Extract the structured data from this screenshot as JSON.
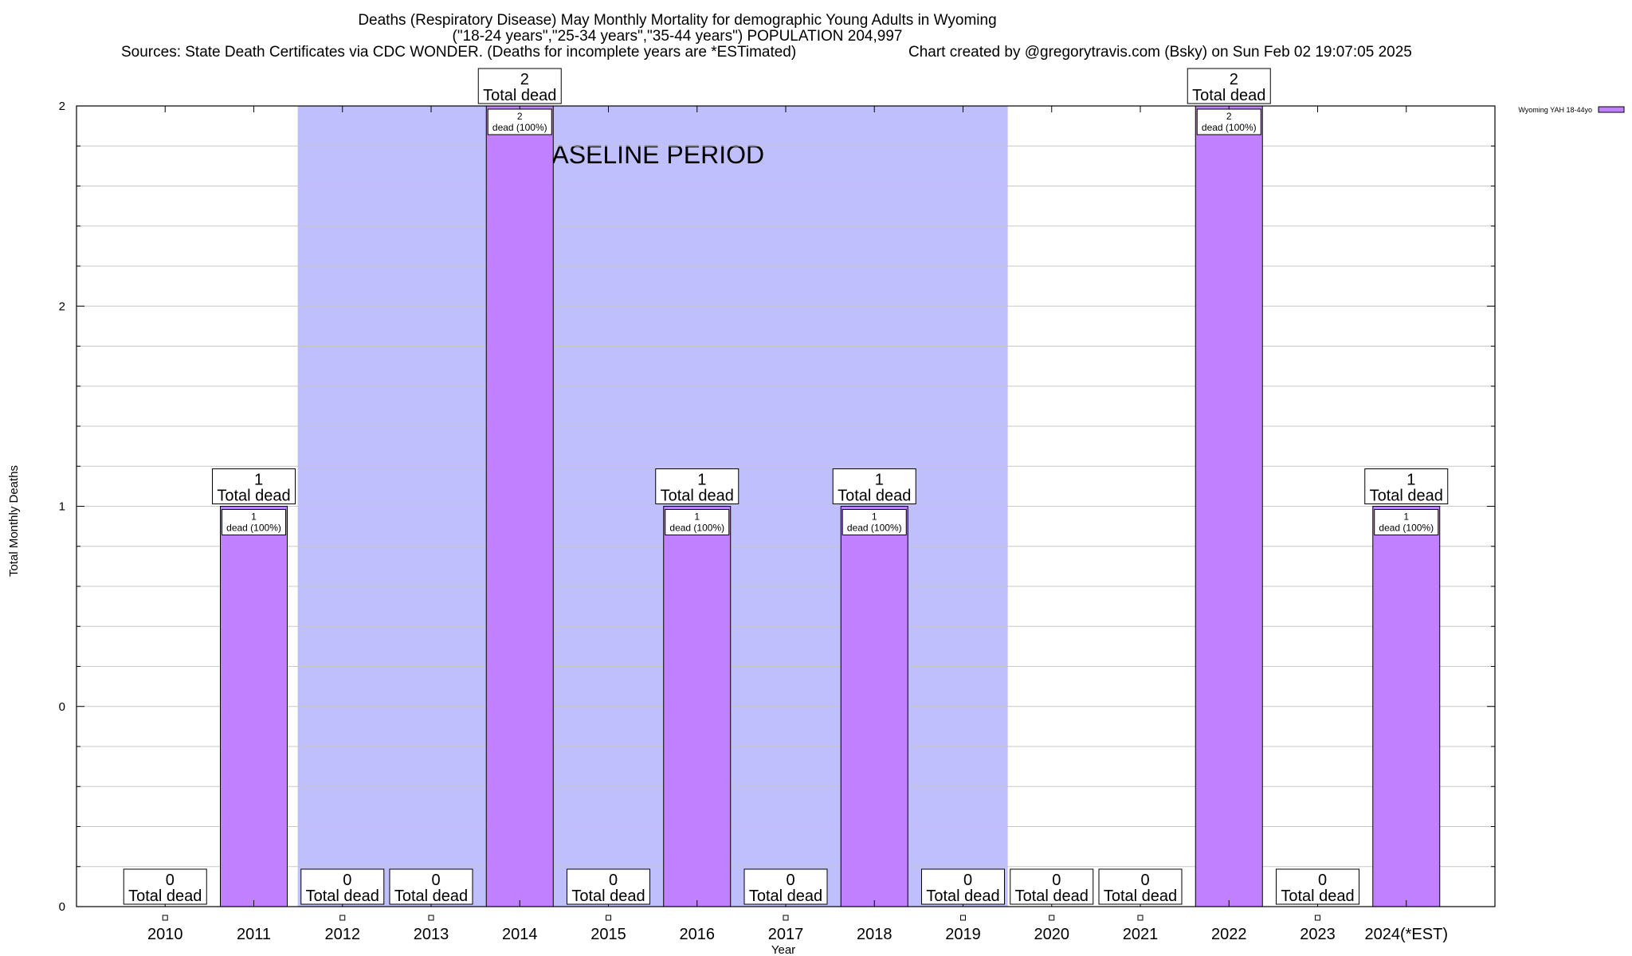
{
  "chart_data": {
    "type": "bar",
    "title_lines": [
      "Deaths (Respiratory Disease) May Monthly Mortality for demographic Young Adults in Wyoming",
      "(\"18-24 years\",\"25-34 years\",\"35-44 years\") POPULATION 204,997",
      "Sources: State Death Certificates via CDC WONDER. (Deaths for incomplete years are *ESTimated)",
      "Chart created by @gregorytravis.com (Bsky) on Sun Feb 02 19:07:05 2025"
    ],
    "xlabel": "Year",
    "ylabel": "Total Monthly Deaths",
    "categories": [
      "2010",
      "2011",
      "2012",
      "2013",
      "2014",
      "2015",
      "2016",
      "2017",
      "2018",
      "2019",
      "2020",
      "2021",
      "2022",
      "2023",
      "2024(*EST)"
    ],
    "series": [
      {
        "name": "Wyoming YAH 18-44yo",
        "values": [
          0,
          1,
          0,
          0,
          2,
          0,
          1,
          0,
          1,
          0,
          0,
          0,
          2,
          0,
          1
        ]
      }
    ],
    "ylim": [
      0,
      2
    ],
    "y_tick_labels": [
      "0",
      "0",
      "1",
      "2",
      "2"
    ],
    "total_label_suffix": "Total dead",
    "bar_label_suffix": "dead (100%)",
    "baseline_label": "BASELINE PERIOD",
    "baseline_range": [
      "2012",
      "2019"
    ],
    "legend_position": "top-right",
    "grid": true,
    "colors": {
      "bar": "#c080ff",
      "baseline": "#bfbffd",
      "grid": "#c8c8c8"
    }
  }
}
